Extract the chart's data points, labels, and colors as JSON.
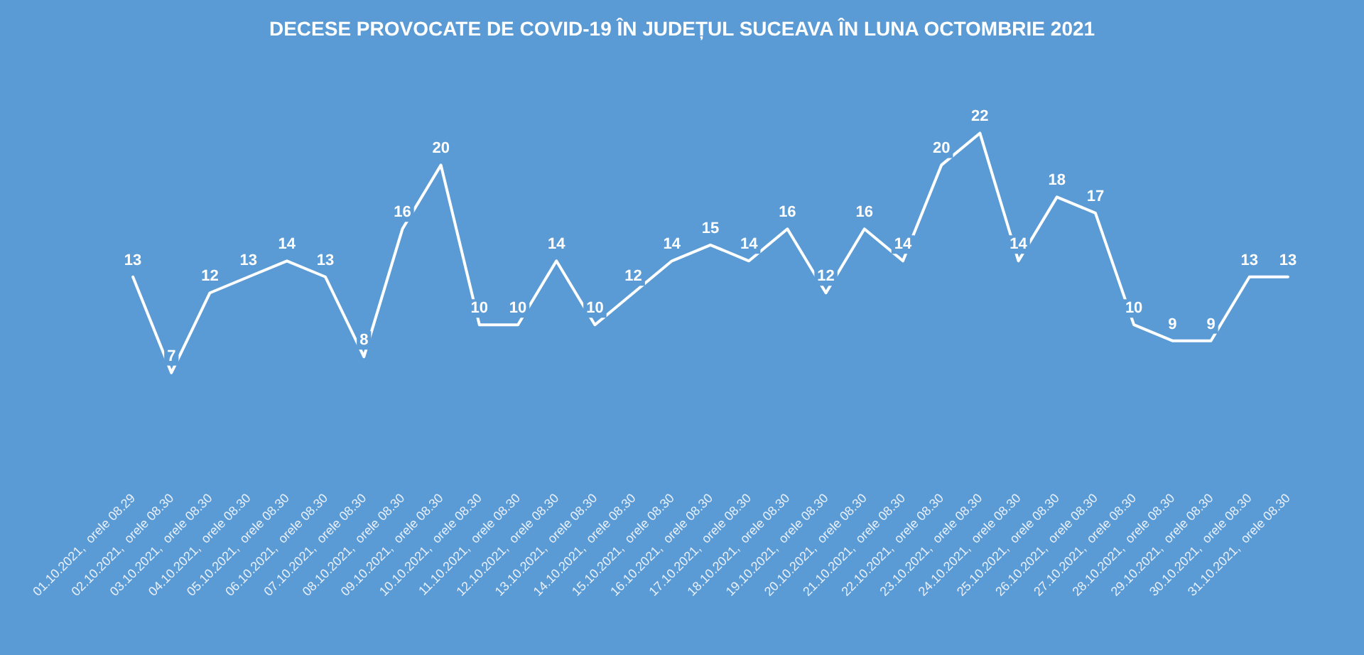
{
  "chart_data": {
    "type": "line",
    "title": "DECESE PROVOCATE DE COVID-19 ÎN JUDEȚUL SUCEAVA ÎN LUNA OCTOMBRIE 2021",
    "categories": [
      "01.10.2021,  orele 08.29",
      "02.10.2021,  orele 08.30",
      "03.10.2021,  orele 08.30",
      "04.10.2021,  orele 08.30",
      "05.10.2021,  orele 08.30",
      "06.10.2021,  orele 08.30",
      "07.10.2021,  orele 08.30",
      "08.10.2021,  orele 08.30",
      "09.10.2021,  orele 08.30",
      "10.10.2021,  orele 08.30",
      "11.10.2021,  orele 08.30",
      "12.10.2021,  orele 08.30",
      "13.10.2021,  orele 08.30",
      "14.10.2021,  orele 08.30",
      "15.10.2021,  orele 08.30",
      "16.10.2021,  orele 08.30",
      "17.10.2021,  orele 08.30",
      "18.10.2021,  orele 08.30",
      "19.10.2021,  orele 08.30",
      "20.10.2021,  orele 08.30",
      "21.10.2021,  orele 08.30",
      "22.10.2021,  orele 08.30",
      "23.10.2021,  orele 08.30",
      "24.10.2021,  orele 08.30",
      "25.10.2021,  orele 08.30",
      "26.10.2021,  orele 08.30",
      "27.10.2021,  orele 08.30",
      "28.10.2021,  orele 08.30",
      "29.10.2021,  orele 08.30",
      "30.10.2021,  orele 08.30",
      "31.10.2021,  orele 08.30"
    ],
    "values": [
      13,
      7,
      12,
      13,
      14,
      13,
      8,
      16,
      20,
      10,
      10,
      14,
      10,
      12,
      14,
      15,
      14,
      16,
      12,
      16,
      14,
      20,
      22,
      14,
      18,
      17,
      10,
      9,
      9,
      13,
      13
    ],
    "color": "#ffffff",
    "data_labels": true,
    "marker": "none",
    "line_style": "solid",
    "grid": false
  }
}
